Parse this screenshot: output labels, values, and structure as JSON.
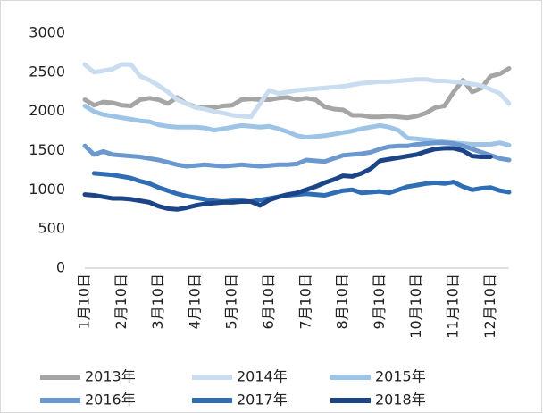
{
  "chart_data": {
    "type": "line",
    "categories": [
      "1月10日",
      null,
      null,
      null,
      "2月10日",
      null,
      null,
      null,
      "3月10日",
      null,
      null,
      null,
      "4月10日",
      null,
      null,
      null,
      "5月10日",
      null,
      null,
      null,
      "6月10日",
      null,
      null,
      null,
      "7月10日",
      null,
      null,
      null,
      "8月10日",
      null,
      null,
      null,
      "9月10日",
      null,
      null,
      null,
      "10月10日",
      null,
      null,
      null,
      "11月10日",
      null,
      null,
      null,
      "12月10日",
      null,
      null
    ],
    "series": [
      {
        "name": "2013年",
        "color": "#a5a5a5",
        "values": [
          2150,
          2080,
          2120,
          2110,
          2080,
          2070,
          2150,
          2170,
          2150,
          2100,
          2180,
          2100,
          2060,
          2050,
          2050,
          2070,
          2080,
          2150,
          2160,
          2150,
          2150,
          2170,
          2180,
          2150,
          2170,
          2150,
          2060,
          2030,
          2020,
          1950,
          1950,
          1930,
          1930,
          1940,
          1930,
          1920,
          1940,
          1980,
          2050,
          2070,
          2250,
          2400,
          2250,
          2300,
          2450,
          2480,
          2550
        ]
      },
      {
        "name": "2014年",
        "color": "#c9dcf0",
        "values": [
          2600,
          2500,
          2520,
          2540,
          2600,
          2600,
          2450,
          2400,
          2330,
          2250,
          2150,
          2100,
          2050,
          2030,
          2000,
          1980,
          1950,
          1940,
          1930,
          2100,
          2270,
          2230,
          2250,
          2270,
          2280,
          2290,
          2300,
          2310,
          2320,
          2340,
          2360,
          2370,
          2380,
          2380,
          2390,
          2400,
          2410,
          2410,
          2390,
          2390,
          2380,
          2370,
          2350,
          2330,
          2280,
          2230,
          2100
        ]
      },
      {
        "name": "2015年",
        "color": "#9dc3e6",
        "values": [
          2070,
          2000,
          1960,
          1940,
          1920,
          1900,
          1880,
          1870,
          1830,
          1810,
          1800,
          1800,
          1800,
          1790,
          1760,
          1780,
          1800,
          1820,
          1810,
          1800,
          1810,
          1780,
          1740,
          1690,
          1670,
          1680,
          1690,
          1710,
          1730,
          1750,
          1780,
          1800,
          1820,
          1800,
          1760,
          1660,
          1650,
          1640,
          1630,
          1610,
          1600,
          1590,
          1580,
          1580,
          1580,
          1600,
          1570
        ]
      },
      {
        "name": "2016年",
        "color": "#6a98cf",
        "values": [
          1560,
          1450,
          1490,
          1450,
          1440,
          1430,
          1420,
          1400,
          1380,
          1350,
          1320,
          1300,
          1310,
          1320,
          1310,
          1300,
          1310,
          1320,
          1310,
          1300,
          1310,
          1320,
          1320,
          1330,
          1380,
          1370,
          1360,
          1400,
          1440,
          1450,
          1460,
          1480,
          1520,
          1550,
          1560,
          1560,
          1580,
          1590,
          1600,
          1600,
          1590,
          1560,
          1520,
          1480,
          1440,
          1400,
          1380
        ]
      },
      {
        "name": "2017年",
        "color": "#2f6db5",
        "values": [
          null,
          1210,
          1200,
          1190,
          1170,
          1150,
          1110,
          1080,
          1030,
          990,
          950,
          920,
          900,
          880,
          860,
          850,
          860,
          860,
          850,
          870,
          890,
          910,
          930,
          940,
          950,
          940,
          930,
          960,
          990,
          1000,
          960,
          970,
          980,
          960,
          1000,
          1040,
          1060,
          1080,
          1090,
          1080,
          1100,
          1040,
          1000,
          1020,
          1030,
          990,
          970
        ]
      },
      {
        "name": "2018年",
        "color": "#1c4587",
        "values": [
          940,
          930,
          910,
          890,
          890,
          880,
          860,
          840,
          790,
          760,
          750,
          770,
          800,
          820,
          830,
          840,
          840,
          850,
          850,
          800,
          870,
          910,
          940,
          960,
          1000,
          1040,
          1090,
          1130,
          1180,
          1170,
          1210,
          1270,
          1370,
          1390,
          1410,
          1430,
          1450,
          1490,
          1520,
          1530,
          1530,
          1500,
          1430,
          1420,
          1420,
          null,
          null
        ]
      }
    ],
    "ylim": [
      0,
      3000
    ],
    "yticks": [
      0,
      500,
      1000,
      1500,
      2000,
      2500,
      3000
    ],
    "grid": false,
    "legend": "bottom"
  }
}
